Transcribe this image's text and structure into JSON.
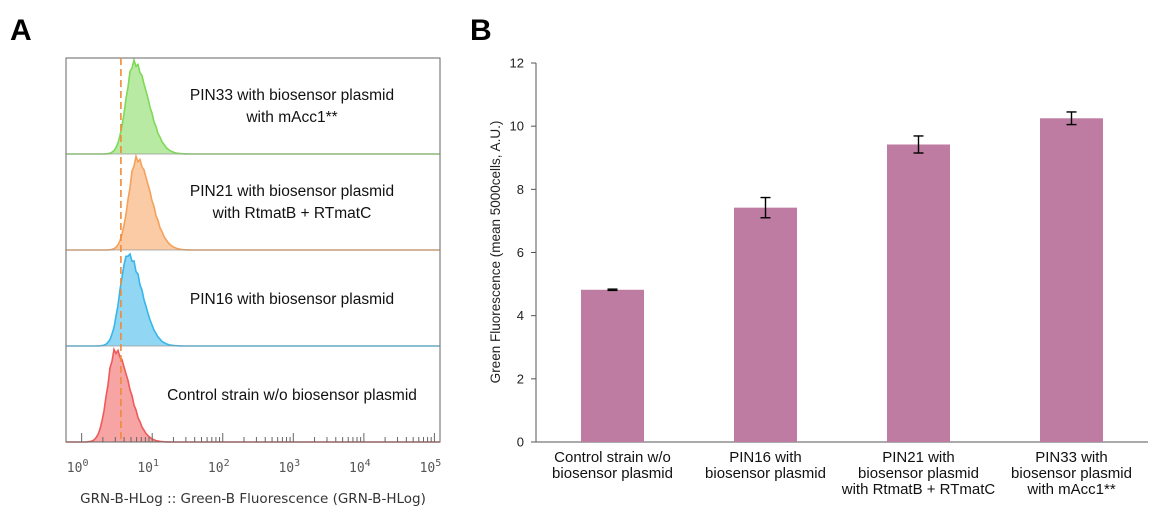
{
  "panels": {
    "a_letter": "A",
    "b_letter": "B"
  },
  "chart_data": [
    {
      "type": "area",
      "panel": "A",
      "xlabel": "GRN-B-HLog :: Green-B Fluorescence (GRN-B-HLog)",
      "xscale": "log",
      "xlim": [
        0.6,
        120000
      ],
      "x_tick_labels": [
        {
          "base": "10",
          "exp": "0",
          "value": 1
        },
        {
          "base": "10",
          "exp": "1",
          "value": 10
        },
        {
          "base": "10",
          "exp": "2",
          "value": 100
        },
        {
          "base": "10",
          "exp": "3",
          "value": 1000
        },
        {
          "base": "10",
          "exp": "4",
          "value": 10000
        },
        {
          "base": "10",
          "exp": "5",
          "value": 100000
        }
      ],
      "reference_line_x": 3.6,
      "series": [
        {
          "label_lines": [
            "PIN33  with biosensor plasmid",
            "with mAcc1**"
          ],
          "peak_x": 5.5,
          "color": "#7ed957"
        },
        {
          "label_lines": [
            "PIN21  with biosensor plasmid",
            "with RtmatB + RTmatC"
          ],
          "peak_x": 6.0,
          "color": "#f5a15b"
        },
        {
          "label_lines": [
            "PIN16  with biosensor plasmid"
          ],
          "peak_x": 4.5,
          "color": "#37b6ea"
        },
        {
          "label_lines": [
            "Control strain w/o biosensor plasmid"
          ],
          "peak_x": 3.0,
          "color": "#ee5a5a"
        }
      ],
      "colors": {
        "reference_line": "#f08a3a",
        "frame": "#666666"
      }
    },
    {
      "type": "bar",
      "panel": "B",
      "ylabel": "Green Fluorescence (mean 5000cells, A.U.)",
      "ylim": [
        0,
        12
      ],
      "yticks": [
        0,
        2,
        4,
        6,
        8,
        10,
        12
      ],
      "categories": [
        [
          "Control strain w/o",
          "biosensor plasmid"
        ],
        [
          "PIN16 with",
          "biosensor plasmid"
        ],
        [
          "PIN21 with",
          "biosensor plasmid",
          "with RtmatB + RTmatC"
        ],
        [
          "PIN33 with",
          "biosensor plasmid",
          "with mAcc1**"
        ]
      ],
      "values": [
        4.82,
        7.42,
        9.42,
        10.25
      ],
      "errors": [
        0.02,
        0.32,
        0.27,
        0.2
      ],
      "colors": {
        "bar": "#bf7ca3",
        "axis": "#555555"
      }
    }
  ]
}
